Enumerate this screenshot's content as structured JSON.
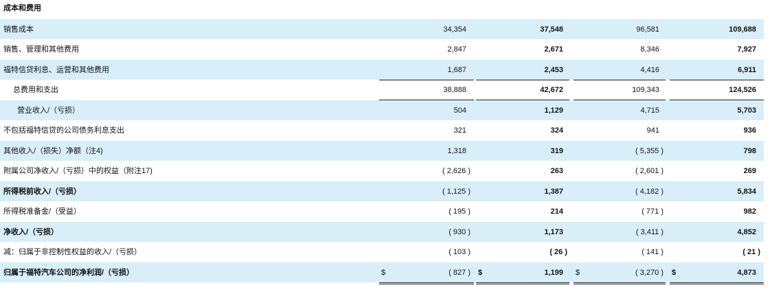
{
  "header": {
    "title": "成本和费用"
  },
  "table": {
    "rows": [
      {
        "label": "销售成本",
        "values": [
          "34,354",
          "37,548",
          "96,581",
          "109,688"
        ]
      },
      {
        "label": "销售、管理和其他费用",
        "values": [
          "2,847",
          "2,671",
          "8,346",
          "7,927"
        ]
      },
      {
        "label": "福特信贷利息、运营和其他费用",
        "values": [
          "1,687",
          "2,453",
          "4,416",
          "6,911"
        ]
      },
      {
        "label": "总费用和支出",
        "values": [
          "38,888",
          "42,672",
          "109,343",
          "124,526"
        ]
      },
      {
        "label": "营业收入/（亏损）",
        "values": [
          "504",
          "1,129",
          "4,715",
          "5,703"
        ]
      },
      {
        "label": "不包括福特信贷的公司债务利息支出",
        "values": [
          "321",
          "324",
          "941",
          "936"
        ]
      },
      {
        "label": "其他收入/（损失）净额（注4)",
        "values": [
          "1,318",
          "319",
          "( 5,355 )",
          "798"
        ]
      },
      {
        "label": "附属公司净收入/（亏损）中的权益（附注17)",
        "values": [
          "( 2,626 )",
          "263",
          "( 2,601 )",
          "269"
        ]
      },
      {
        "label": "所得税前收入/（亏损）",
        "values": [
          "( 1,125 )",
          "1,387",
          "( 4,182 )",
          "5,834"
        ]
      },
      {
        "label": "所得税准备金/（受益）",
        "values": [
          "( 195 )",
          "214",
          "( 771 )",
          "982"
        ]
      },
      {
        "label": "净收入/（亏损）",
        "values": [
          "( 930 )",
          "1,173",
          "( 3,411 )",
          "4,852"
        ]
      },
      {
        "label": "减：归属于非控制性权益的收入/（亏损）",
        "values": [
          "( 103 )",
          "( 26 )",
          "( 141 )",
          "( 21 )"
        ]
      },
      {
        "label": "归属于福特汽车公司的净利润/（亏损）",
        "values": [
          "( 827 )",
          "1,199",
          "( 3,270 )",
          "4,873"
        ],
        "currency": "$"
      }
    ]
  }
}
